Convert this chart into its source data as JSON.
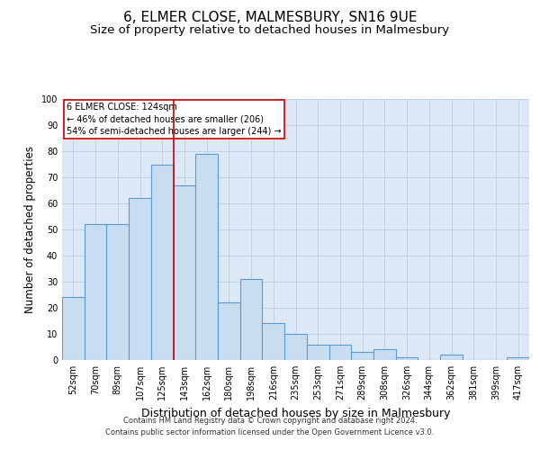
{
  "title": "6, ELMER CLOSE, MALMESBURY, SN16 9UE",
  "subtitle": "Size of property relative to detached houses in Malmesbury",
  "xlabel": "Distribution of detached houses by size in Malmesbury",
  "ylabel": "Number of detached properties",
  "categories": [
    "52sqm",
    "70sqm",
    "89sqm",
    "107sqm",
    "125sqm",
    "143sqm",
    "162sqm",
    "180sqm",
    "198sqm",
    "216sqm",
    "235sqm",
    "253sqm",
    "271sqm",
    "289sqm",
    "308sqm",
    "326sqm",
    "344sqm",
    "362sqm",
    "381sqm",
    "399sqm",
    "417sqm"
  ],
  "values": [
    24,
    52,
    52,
    62,
    75,
    67,
    79,
    22,
    31,
    14,
    10,
    6,
    6,
    3,
    4,
    1,
    0,
    2,
    0,
    0,
    1
  ],
  "bar_color": "#c9ddf0",
  "bar_edge_color": "#5b9bd5",
  "plot_bg_color": "#dce8f5",
  "grid_color": "#b8cfe0",
  "annotation_text": "6 ELMER CLOSE: 124sqm\n← 46% of detached houses are smaller (206)\n54% of semi-detached houses are larger (244) →",
  "annotation_box_color": "#ffffff",
  "annotation_box_edge_color": "#cc0000",
  "vline_x": 4.5,
  "vline_color": "#cc0000",
  "ylim": [
    0,
    100
  ],
  "footer_line1": "Contains HM Land Registry data © Crown copyright and database right 2024.",
  "footer_line2": "Contains public sector information licensed under the Open Government Licence v3.0.",
  "title_fontsize": 11,
  "subtitle_fontsize": 9.5,
  "xlabel_fontsize": 9,
  "ylabel_fontsize": 8.5,
  "tick_fontsize": 7,
  "annot_fontsize": 7,
  "footer_fontsize": 6
}
